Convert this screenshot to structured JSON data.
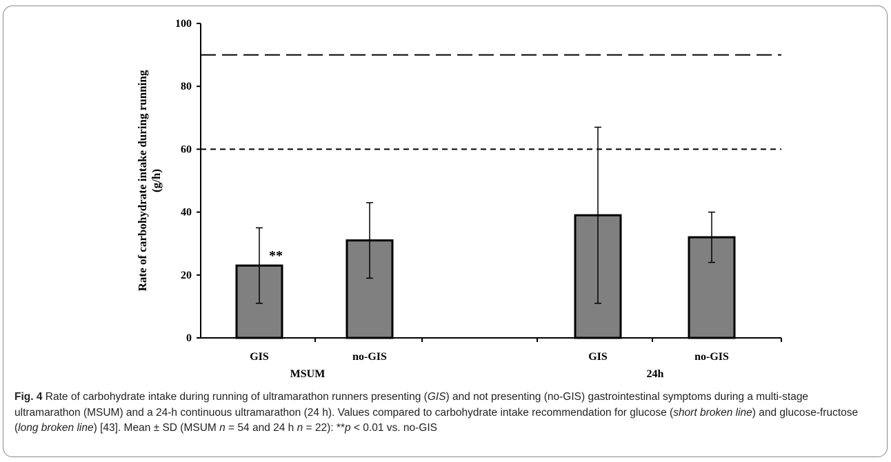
{
  "chart_data": {
    "type": "bar",
    "ylabel_line1": "Rate of carbohydrate intake during running",
    "ylabel_line2": "(g/h)",
    "ylim": [
      0,
      100
    ],
    "y_ticks": [
      "0",
      "20",
      "40",
      "60",
      "80",
      "100"
    ],
    "groups": [
      {
        "name": "MSUM",
        "bars": [
          {
            "category": "GIS",
            "value": 23,
            "sd_low": 11,
            "sd_high": 35,
            "annotation": "**"
          },
          {
            "category": "no-GIS",
            "value": 31,
            "sd_low": 19,
            "sd_high": 43,
            "annotation": ""
          }
        ]
      },
      {
        "name": "24h",
        "bars": [
          {
            "category": "GIS",
            "value": 39,
            "sd_low": 11,
            "sd_high": 67,
            "annotation": ""
          },
          {
            "category": "no-GIS",
            "value": 32,
            "sd_low": 24,
            "sd_high": 40,
            "annotation": ""
          }
        ]
      }
    ],
    "reference_lines": [
      {
        "style": "long broken line",
        "value": 90
      },
      {
        "style": "short broken line",
        "value": 60
      }
    ],
    "bar_color": "#808080",
    "grid": false,
    "legend": "none"
  },
  "caption": {
    "fig_label": "Fig. 4",
    "parts": [
      {
        "t": "Rate of carbohydrate intake during running of ultramarathon runners presenting (",
        "i": false
      },
      {
        "t": "GIS",
        "i": true
      },
      {
        "t": ") and not presenting (no-GIS) gastrointestinal symptoms during a multi-stage ultramarathon (MSUM) and a 24-h continuous ultramarathon (24 h). Values compared to carbohydrate intake recommendation for glucose (",
        "i": false
      },
      {
        "t": "short broken line",
        "i": true
      },
      {
        "t": ") and glucose-fructose (",
        "i": false
      },
      {
        "t": "long broken line",
        "i": true
      },
      {
        "t": ") [43]. Mean ± SD (MSUM ",
        "i": false
      },
      {
        "t": "n",
        "i": true
      },
      {
        "t": " = 54 and 24 h ",
        "i": false
      },
      {
        "t": "n",
        "i": true
      },
      {
        "t": " = 22): **",
        "i": false
      },
      {
        "t": "p",
        "i": true
      },
      {
        "t": " < 0.01 vs. no-GIS",
        "i": false
      }
    ]
  }
}
